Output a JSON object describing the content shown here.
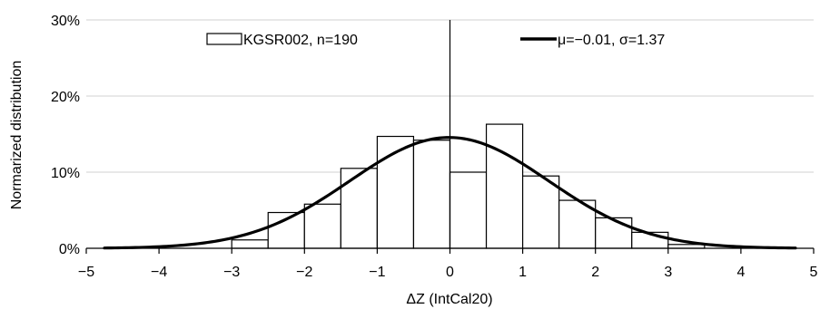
{
  "chart_data": {
    "type": "bar",
    "xlabel": "ΔZ (IntCal20)",
    "ylabel": "Normarized distribution",
    "xlim": [
      -5,
      5
    ],
    "ylim": [
      0,
      30
    ],
    "x_ticks": [
      "−5",
      "−4",
      "−3",
      "−2",
      "−1",
      "0",
      "1",
      "2",
      "3",
      "4",
      "5"
    ],
    "y_ticks": [
      "0%",
      "10%",
      "20%",
      "30%"
    ],
    "grid": "horizontal",
    "legend_position": "top",
    "histogram": {
      "name": "KGSR002, n=190",
      "bin_width": 0.5,
      "bins": [
        {
          "start": -3.0,
          "value": 1.1
        },
        {
          "start": -2.5,
          "value": 4.7
        },
        {
          "start": -2.0,
          "value": 5.8
        },
        {
          "start": -1.5,
          "value": 10.5
        },
        {
          "start": -1.0,
          "value": 14.7
        },
        {
          "start": -0.5,
          "value": 14.2
        },
        {
          "start": 0.0,
          "value": 10.0
        },
        {
          "start": 0.5,
          "value": 16.3
        },
        {
          "start": 1.0,
          "value": 9.5
        },
        {
          "start": 1.5,
          "value": 6.3
        },
        {
          "start": 2.0,
          "value": 4.0
        },
        {
          "start": 2.5,
          "value": 2.1
        },
        {
          "start": 3.0,
          "value": 0.5
        }
      ]
    },
    "curve": {
      "name": "μ=−0.01, σ=1.37",
      "mu": -0.01,
      "sigma": 1.37,
      "x_range": [
        -4.75,
        4.75
      ]
    },
    "reference_line_x": 0
  }
}
